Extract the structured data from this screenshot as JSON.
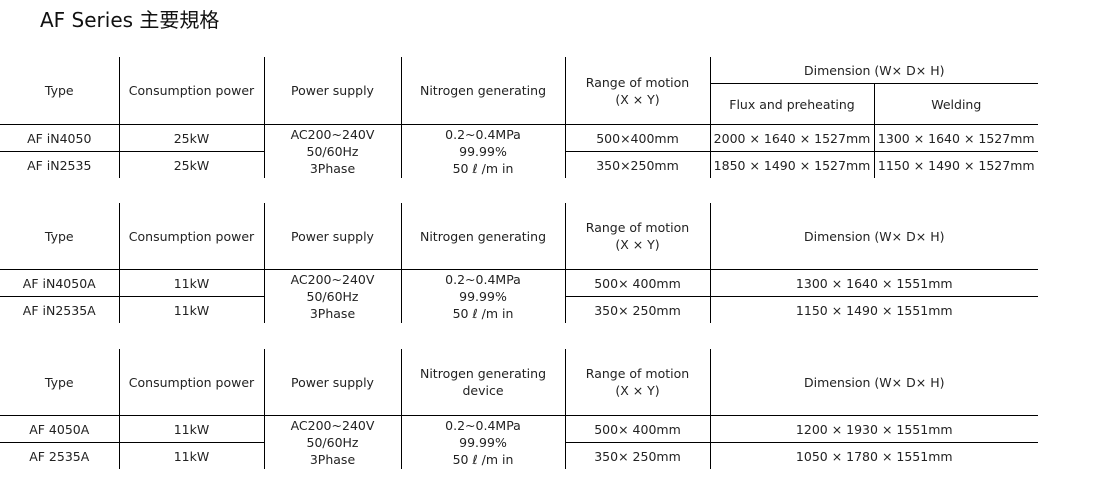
{
  "title": "AF Series 主要規格",
  "headers": {
    "type": "Type",
    "consumption": "Consumption power",
    "power_supply": "Power supply",
    "nitrogen": "Nitrogen generating",
    "nitrogen_device": "device",
    "range_line1": "Range of motion",
    "range_line2": "(X × Y)",
    "dimension": "Dimension (W× D× H)",
    "flux": "Flux and preheating",
    "welding": "Welding"
  },
  "shared": {
    "power_supply": [
      "AC200~240V",
      "50/60Hz",
      "3Phase"
    ],
    "nitrogen": [
      "0.2~0.4MPa",
      "99.99%",
      "50 ℓ /m in"
    ]
  },
  "table1": {
    "rows": [
      {
        "type": "AF iN4050",
        "power": "25kW",
        "range": "500×400mm",
        "flux": "2000 × 1640 × 1527mm",
        "welding": "1300 × 1640 × 1527mm"
      },
      {
        "type": "AF iN2535",
        "power": "25kW",
        "range": "350×250mm",
        "flux": "1850 × 1490 × 1527mm",
        "welding": "1150 × 1490 × 1527mm"
      }
    ]
  },
  "table2": {
    "rows": [
      {
        "type": "AF iN4050A",
        "power": "11kW",
        "range": "500× 400mm",
        "dimension": "1300 × 1640 × 1551mm"
      },
      {
        "type": "AF iN2535A",
        "power": "11kW",
        "range": "350× 250mm",
        "dimension": "1150 × 1490 × 1551mm"
      }
    ]
  },
  "table3": {
    "rows": [
      {
        "type": "AF 4050A",
        "power": "11kW",
        "range": "500× 400mm",
        "dimension": "1200 × 1930 × 1551mm"
      },
      {
        "type": "AF 2535A",
        "power": "11kW",
        "range": "350× 250mm",
        "dimension": "1050 × 1780 × 1551mm"
      }
    ]
  }
}
